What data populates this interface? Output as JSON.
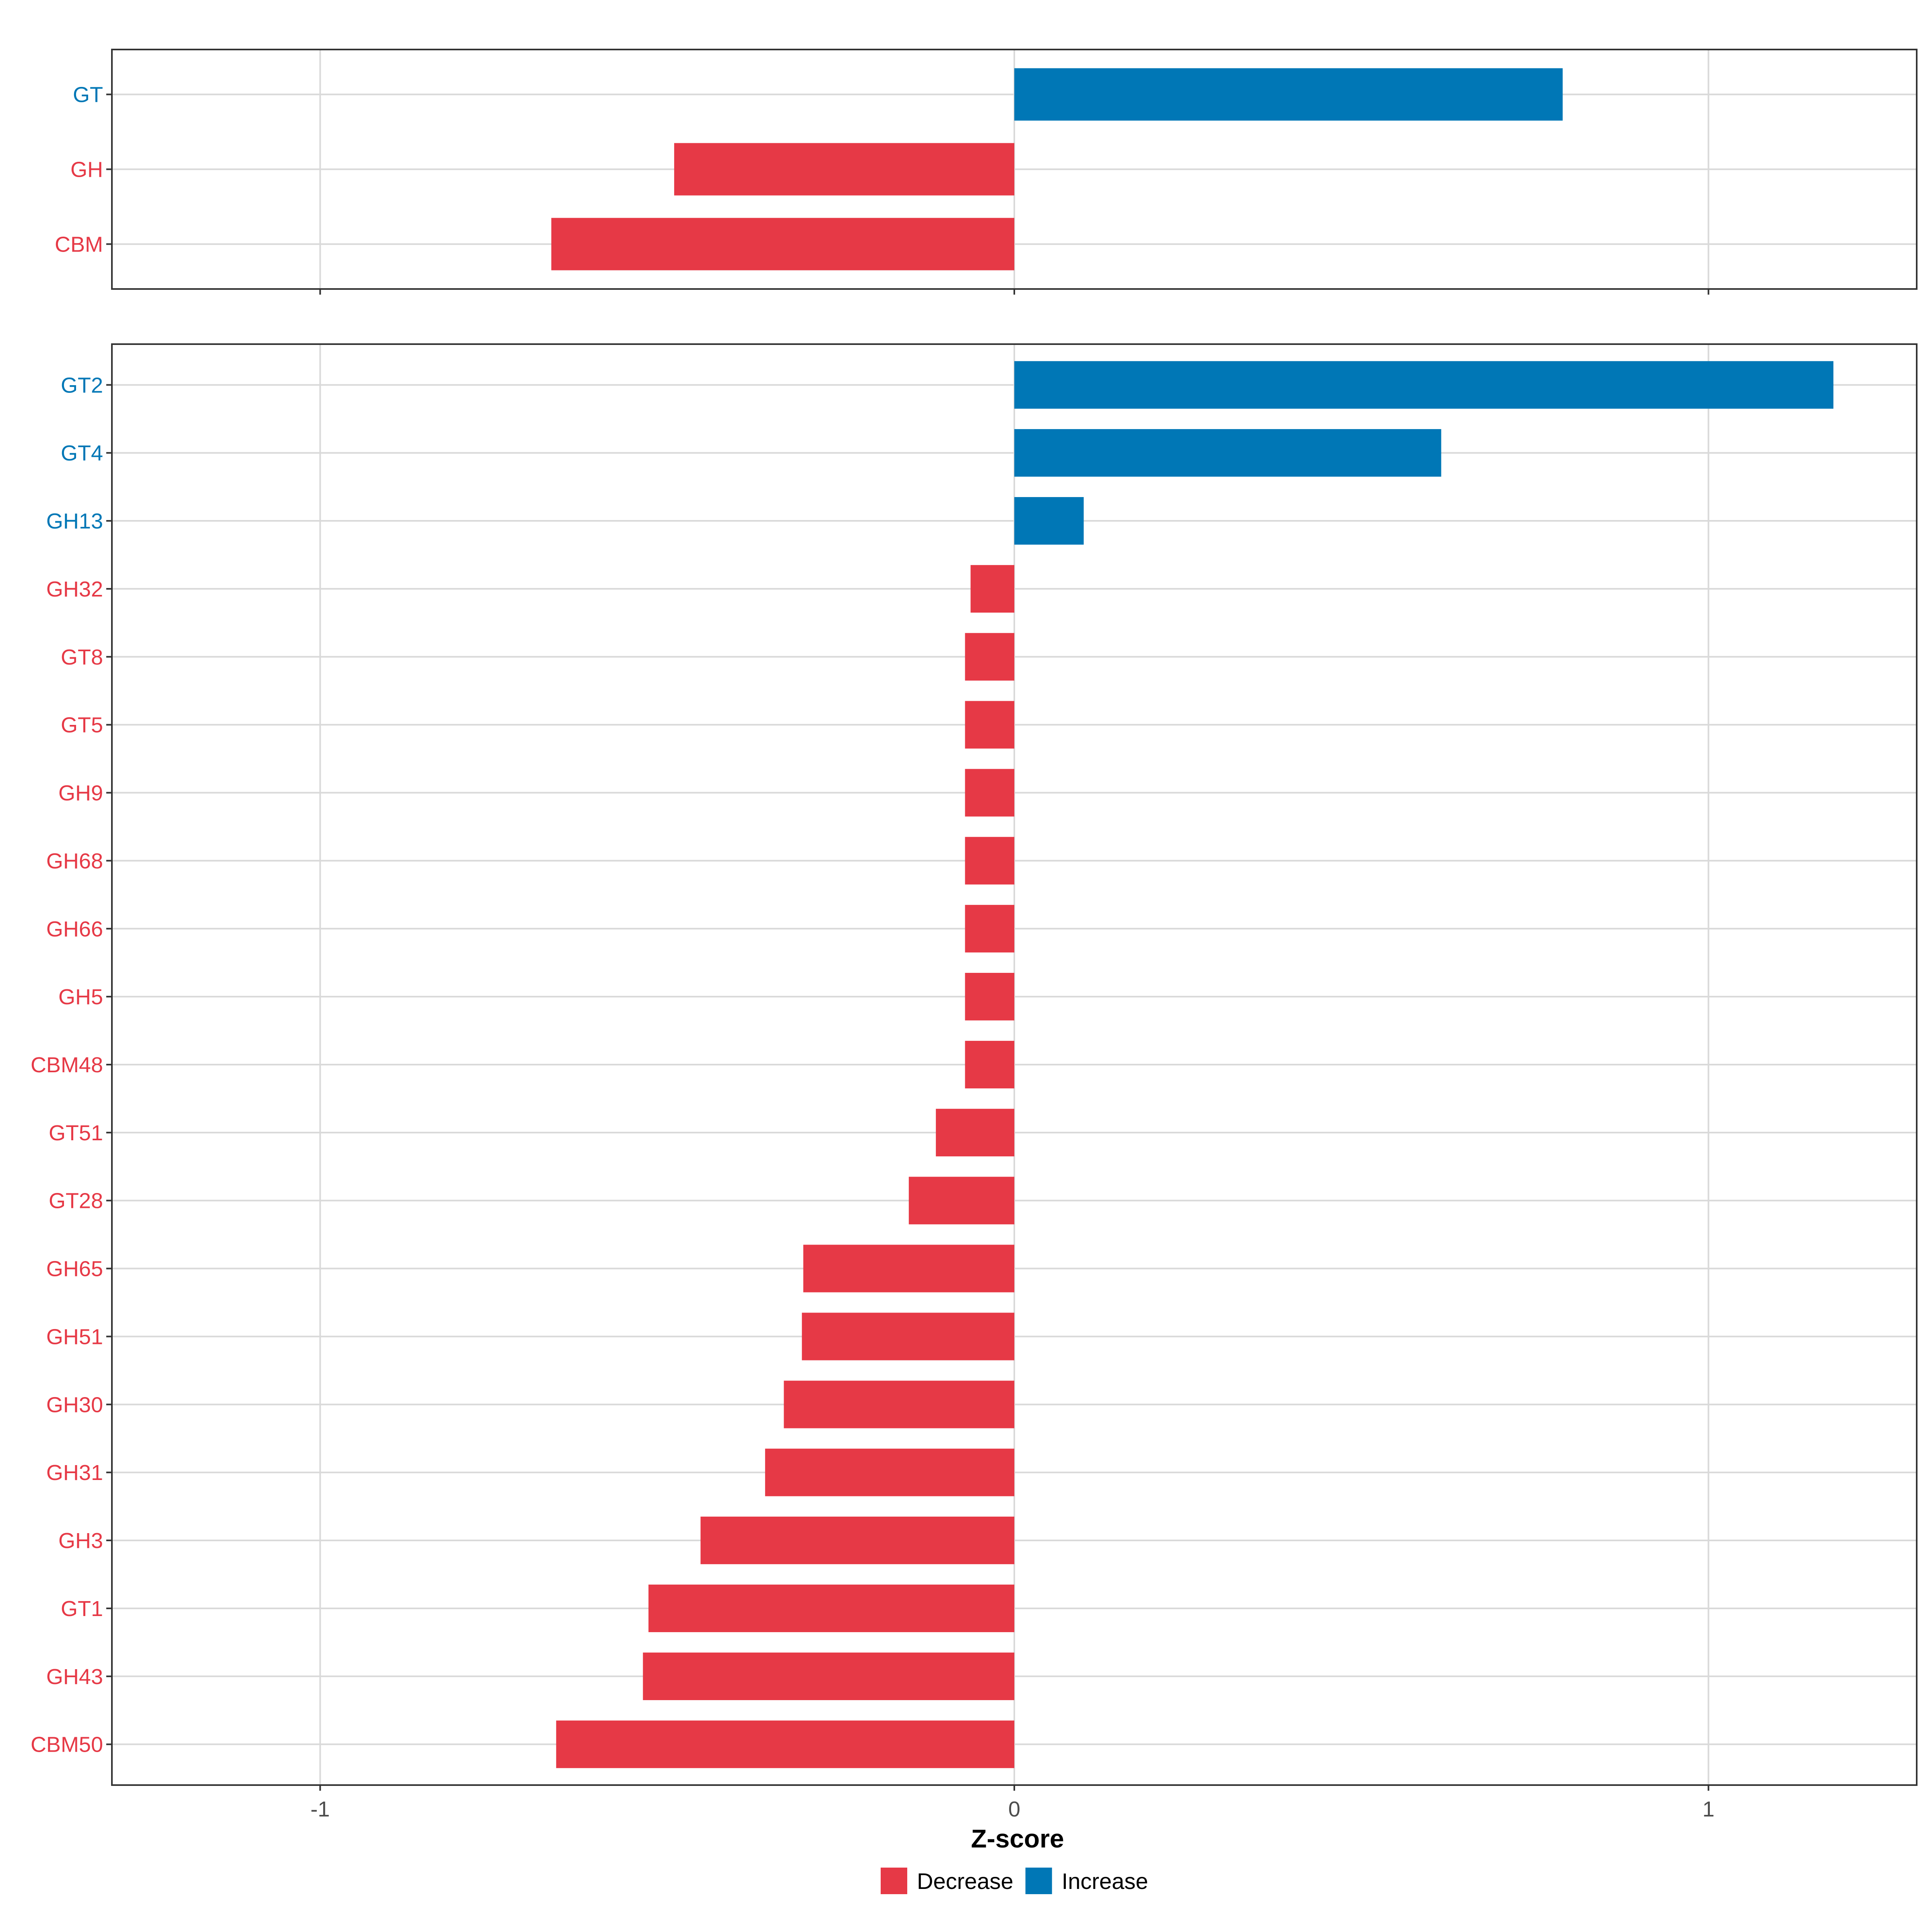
{
  "chart_data": {
    "type": "bar",
    "orientation": "horizontal",
    "xlabel": "Z-score",
    "xlim": [
      -1.3,
      1.3
    ],
    "xticks": [
      -1,
      0,
      1
    ],
    "xtick_labels": [
      "-1",
      "0",
      "1"
    ],
    "grid": true,
    "legend_placement": "bottom",
    "colors": {
      "Decrease": "#e63946",
      "Increase": "#0077b6"
    },
    "legend": [
      {
        "label": "Decrease",
        "color": "#e63946"
      },
      {
        "label": "Increase",
        "color": "#0077b6"
      }
    ],
    "panels": [
      {
        "categories": [
          "GT",
          "GH",
          "CBM"
        ],
        "values": [
          0.79,
          -0.49,
          -0.667
        ],
        "groups": [
          "Increase",
          "Decrease",
          "Decrease"
        ]
      },
      {
        "categories": [
          "GT2",
          "GT4",
          "GH13",
          "GH32",
          "GT8",
          "GT5",
          "GH9",
          "GH68",
          "GH66",
          "GH5",
          "CBM48",
          "GT51",
          "GT28",
          "GH65",
          "GH51",
          "GH30",
          "GH31",
          "GH3",
          "GT1",
          "GH43",
          "CBM50"
        ],
        "values": [
          1.18,
          0.615,
          0.1,
          -0.063,
          -0.071,
          -0.071,
          -0.071,
          -0.071,
          -0.071,
          -0.071,
          -0.071,
          -0.113,
          -0.152,
          -0.304,
          -0.306,
          -0.332,
          -0.359,
          -0.452,
          -0.527,
          -0.535,
          -0.66
        ],
        "groups": [
          "Increase",
          "Increase",
          "Increase",
          "Decrease",
          "Decrease",
          "Decrease",
          "Decrease",
          "Decrease",
          "Decrease",
          "Decrease",
          "Decrease",
          "Decrease",
          "Decrease",
          "Decrease",
          "Decrease",
          "Decrease",
          "Decrease",
          "Decrease",
          "Decrease",
          "Decrease",
          "Decrease"
        ]
      }
    ]
  }
}
